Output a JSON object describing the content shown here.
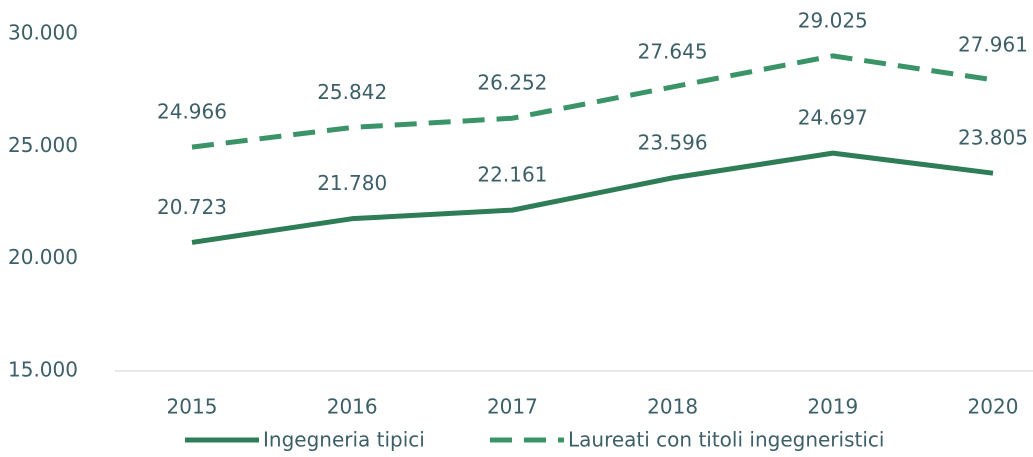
{
  "chart_data": {
    "type": "line",
    "categories": [
      "2015",
      "2016",
      "2017",
      "2018",
      "2019",
      "2020"
    ],
    "series": [
      {
        "name": "Ingegneria tipici",
        "color": "#2e7d57",
        "dash": false,
        "values": [
          20723,
          21780,
          22161,
          23596,
          24697,
          23805
        ],
        "value_labels": [
          "20.723",
          "21.780",
          "22.161",
          "23.596",
          "24.697",
          "23.805"
        ]
      },
      {
        "name": "Laureati con titoli ingegneristici",
        "color": "#3a9468",
        "dash": true,
        "values": [
          24966,
          25842,
          26252,
          27645,
          29025,
          27961
        ],
        "value_labels": [
          "24.966",
          "25.842",
          "26.252",
          "27.645",
          "29.025",
          "27.961"
        ]
      }
    ],
    "ylim": [
      15000,
      30000
    ],
    "yticks": [
      {
        "value": 15000,
        "label": "15.000"
      },
      {
        "value": 20000,
        "label": "20.000"
      },
      {
        "value": 25000,
        "label": "25.000"
      },
      {
        "value": 30000,
        "label": "30.000"
      }
    ],
    "grid": false,
    "legend": "bottom"
  }
}
